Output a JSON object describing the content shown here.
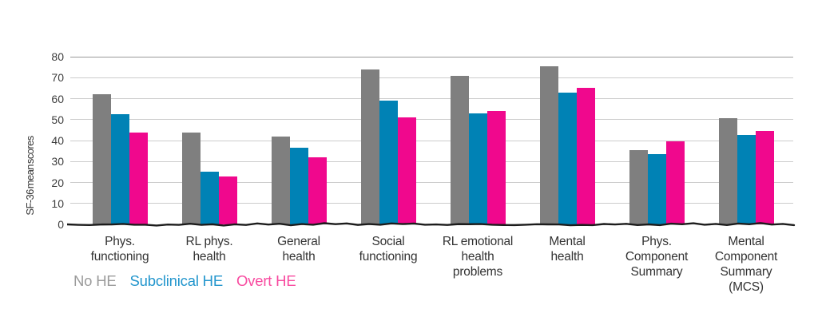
{
  "chart_data": {
    "type": "bar",
    "title": "",
    "ylabel": "SF-36 mean scores",
    "xlabel": "",
    "ylim": [
      0,
      80
    ],
    "yticks": [
      0,
      10,
      20,
      30,
      40,
      50,
      60,
      70,
      80
    ],
    "grid": "horizontal",
    "legend_position": "bottom-left",
    "categories": [
      [
        "Phys.",
        "functioning"
      ],
      [
        "RL phys.",
        "health"
      ],
      [
        "General",
        "health"
      ],
      [
        "Social",
        "functioning"
      ],
      [
        "RL emotional",
        "health",
        "problems"
      ],
      [
        "Mental",
        "health"
      ],
      [
        "Phys.",
        "Component",
        "Summary"
      ],
      [
        "Mental",
        "Component",
        "Summary",
        "(MCS)"
      ]
    ],
    "series": [
      {
        "name": "No HE",
        "color": "#7f7f7f",
        "legend_color": "#9b9b9b",
        "values": [
          62,
          44,
          42,
          74,
          71,
          75.5,
          35.5,
          50.5
        ]
      },
      {
        "name": "Subclinical HE",
        "color": "#0082b5",
        "legend_color": "#2396cd",
        "values": [
          52.5,
          25,
          36.5,
          59,
          53,
          63,
          33.5,
          42.5
        ]
      },
      {
        "name": "Overt HE",
        "color": "#f0088d",
        "legend_color": "#f84ba0",
        "values": [
          44,
          23,
          32,
          51,
          54,
          65,
          39.5,
          44.5
        ]
      }
    ]
  }
}
